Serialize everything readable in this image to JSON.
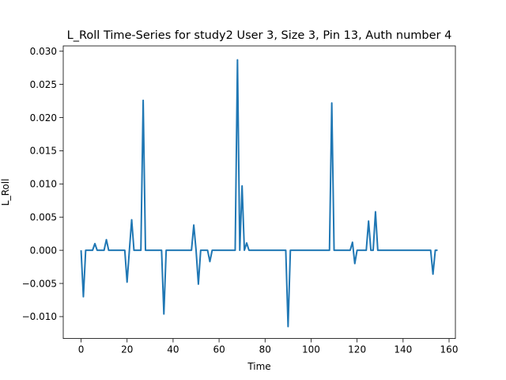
{
  "chart_data": {
    "type": "line",
    "title": "L_Roll Time-Series for study2 User 3, Size 3, Pin 13, Auth number 4",
    "xlabel": "Time",
    "ylabel": "L_Roll",
    "xlim": [
      -7.75,
      162.75
    ],
    "ylim": [
      -0.0133,
      0.0308
    ],
    "xticks": [
      0,
      20,
      40,
      60,
      80,
      100,
      120,
      140,
      160
    ],
    "xtick_labels": [
      "0",
      "20",
      "40",
      "60",
      "80",
      "100",
      "120",
      "140",
      "160"
    ],
    "yticks": [
      -0.01,
      -0.005,
      0.0,
      0.005,
      0.01,
      0.015,
      0.02,
      0.025,
      0.03
    ],
    "ytick_labels": [
      "−0.010",
      "−0.005",
      "0.000",
      "0.005",
      "0.010",
      "0.015",
      "0.020",
      "0.025",
      "0.030"
    ],
    "grid": false,
    "line_color": "#1f77b4",
    "series": [
      {
        "x": [
          0,
          1,
          2,
          3,
          4,
          5,
          6,
          7,
          8,
          9,
          10,
          11,
          12,
          13,
          14,
          15,
          16,
          17,
          18,
          19,
          20,
          21,
          22,
          23,
          24,
          25,
          26,
          27,
          28,
          29,
          30,
          31,
          32,
          33,
          34,
          35,
          36,
          37,
          38,
          39,
          40,
          41,
          42,
          43,
          44,
          45,
          46,
          47,
          48,
          49,
          50,
          51,
          52,
          53,
          54,
          55,
          56,
          57,
          58,
          59,
          60,
          61,
          62,
          63,
          64,
          65,
          66,
          67,
          68,
          69,
          70,
          71,
          72,
          73,
          74,
          75,
          76,
          77,
          78,
          79,
          80,
          81,
          82,
          83,
          84,
          85,
          86,
          87,
          88,
          89,
          90,
          91,
          92,
          93,
          94,
          95,
          96,
          97,
          98,
          99,
          100,
          101,
          102,
          103,
          104,
          105,
          106,
          107,
          108,
          109,
          110,
          111,
          112,
          113,
          114,
          115,
          116,
          117,
          118,
          119,
          120,
          121,
          122,
          123,
          124,
          125,
          126,
          127,
          128,
          129,
          130,
          131,
          132,
          133,
          134,
          135,
          136,
          137,
          138,
          139,
          140,
          141,
          142,
          143,
          144,
          145,
          146,
          147,
          148,
          149,
          150,
          151,
          152,
          153,
          154,
          155
        ],
        "y": [
          0.0,
          -0.007,
          0.0,
          0.0,
          0.0,
          0.0,
          0.001,
          0.0,
          0.0,
          0.0,
          0.0,
          0.0016,
          0.0,
          0.0,
          0.0,
          0.0,
          0.0,
          0.0,
          0.0,
          0.0,
          -0.0048,
          0.0,
          0.0046,
          0.0,
          0.0,
          0.0,
          0.0,
          0.0226,
          0.0,
          0.0,
          0.0,
          0.0,
          0.0,
          0.0,
          0.0,
          0.0,
          -0.0096,
          0.0,
          0.0,
          0.0,
          0.0,
          0.0,
          0.0,
          0.0,
          0.0,
          0.0,
          0.0,
          0.0,
          0.0,
          0.0038,
          0.0,
          -0.0051,
          0.0,
          0.0,
          0.0,
          0.0,
          -0.0017,
          0.0,
          0.0,
          0.0,
          0.0,
          0.0,
          0.0,
          0.0,
          0.0,
          0.0,
          0.0,
          0.0,
          0.0287,
          0.0,
          0.0097,
          0.0,
          0.0011,
          0.0,
          0.0,
          0.0,
          0.0,
          0.0,
          0.0,
          0.0,
          0.0,
          0.0,
          0.0,
          0.0,
          0.0,
          0.0,
          0.0,
          0.0,
          0.0,
          0.0,
          -0.0115,
          0.0,
          0.0,
          0.0,
          0.0,
          0.0,
          0.0,
          0.0,
          0.0,
          0.0,
          0.0,
          0.0,
          0.0,
          0.0,
          0.0,
          0.0,
          0.0,
          0.0,
          0.0,
          0.0222,
          0.0,
          0.0,
          0.0,
          0.0,
          0.0,
          0.0,
          0.0,
          0.0,
          0.0012,
          -0.002,
          0.0,
          0.0,
          0.0,
          0.0,
          0.0,
          0.0044,
          0.0,
          0.0,
          0.0058,
          0.0,
          0.0,
          0.0,
          0.0,
          0.0,
          0.0,
          0.0,
          0.0,
          0.0,
          0.0,
          0.0,
          0.0,
          0.0,
          0.0,
          0.0,
          0.0,
          0.0,
          0.0,
          0.0,
          0.0,
          0.0,
          0.0,
          0.0,
          0.0,
          -0.0036,
          0.0,
          0.0
        ]
      }
    ]
  }
}
